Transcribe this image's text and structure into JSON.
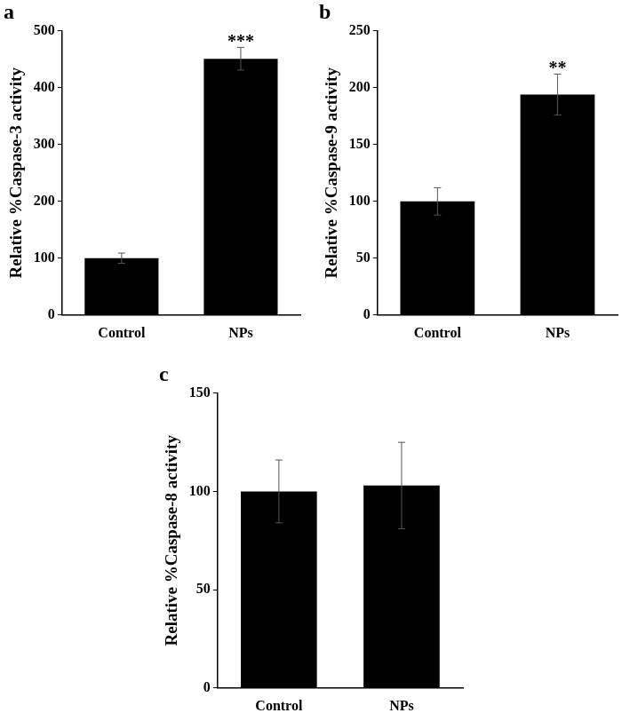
{
  "chart_data": [
    {
      "type": "bar",
      "title": "a",
      "y_label": "Relative %Caspase-3 activity",
      "categories": [
        "Control",
        "NPs"
      ],
      "values": [
        100,
        451
      ],
      "error": [
        9,
        20
      ],
      "color": "#000000",
      "ylim": [
        0,
        500
      ],
      "yticks": [
        0,
        100,
        200,
        300,
        400,
        500
      ],
      "grid": false,
      "annotations": [
        {
          "text": "***",
          "category": "NPs"
        }
      ]
    },
    {
      "type": "bar",
      "title": "b",
      "y_label": "Relative %Caspase-9 activity",
      "categories": [
        "Control",
        "NPs"
      ],
      "values": [
        100,
        194
      ],
      "error": [
        12,
        18
      ],
      "color": "#000000",
      "ylim": [
        0,
        250
      ],
      "yticks": [
        0,
        50,
        100,
        150,
        200,
        250
      ],
      "grid": false,
      "annotations": [
        {
          "text": "**",
          "category": "NPs"
        }
      ]
    },
    {
      "type": "bar",
      "title": "c",
      "y_label": "Relative %Caspase-8 activity",
      "categories": [
        "Control",
        "NPs"
      ],
      "values": [
        100,
        103
      ],
      "error": [
        16,
        22
      ],
      "color": "#000000",
      "ylim": [
        0,
        150
      ],
      "yticks": [
        0,
        50,
        100,
        150
      ],
      "grid": false
    }
  ]
}
